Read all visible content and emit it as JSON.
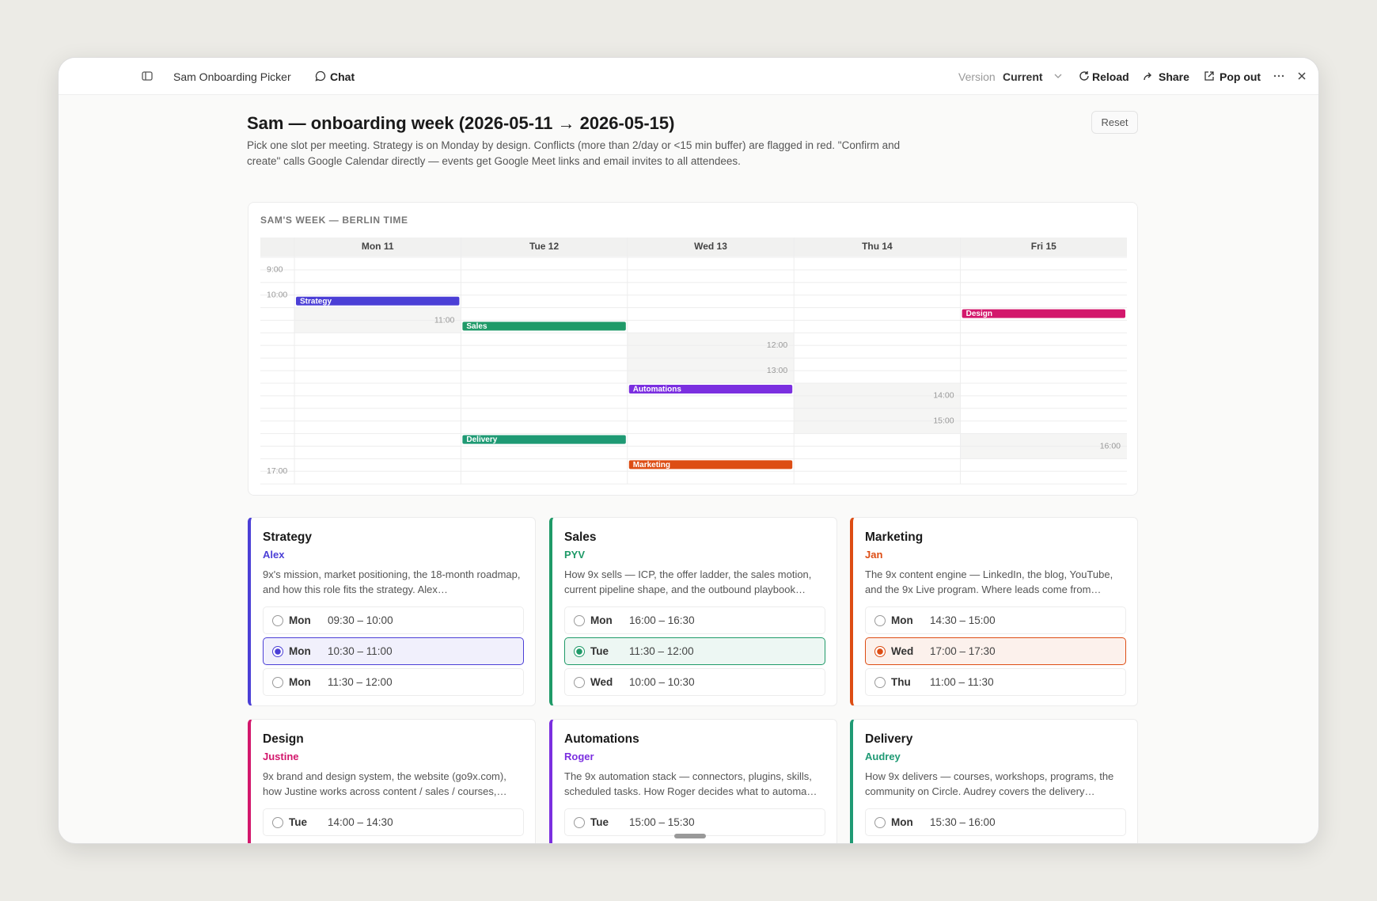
{
  "toolbar": {
    "app_name": "Sam Onboarding Picker",
    "chat": "Chat",
    "version_label": "Version",
    "version_value": "Current",
    "reload": "Reload",
    "share": "Share",
    "pop_out": "Pop out"
  },
  "header": {
    "title": "Sam — onboarding week (2026-05-11 → 2026-05-15)",
    "description": "Pick one slot per meeting. Strategy is on Monday by design. Conflicts (more than 2/day or <15 min buffer) are flagged in red. \"Confirm and create\" calls Google Calendar directly — events get Google Meet links and email invites to all attendees.",
    "reset": "Reset"
  },
  "calendar": {
    "heading": "SAM'S WEEK — BERLIN TIME",
    "days": [
      "Mon 11",
      "Tue 12",
      "Wed 13",
      "Thu 14",
      "Fri 15"
    ],
    "time_labels": [
      "9:00",
      "10:00",
      "11:00",
      "12:00",
      "13:00",
      "14:00",
      "15:00",
      "16:00",
      "17:00"
    ],
    "events": [
      {
        "label": "Strategy",
        "color": "#4b3fd6"
      },
      {
        "label": "Sales",
        "color": "#1f9a68"
      },
      {
        "label": "Design",
        "color": "#d3176c"
      },
      {
        "label": "Automations",
        "color": "#7b2fe0"
      },
      {
        "label": "Delivery",
        "color": "#1f9a74"
      },
      {
        "label": "Marketing",
        "color": "#dd4d14"
      }
    ]
  },
  "meetings": [
    {
      "title": "Strategy",
      "person": "Alex",
      "color": "#4b3fd6",
      "description": "9x's mission, market positioning, the 18-month roadmap, and how this role fits the strategy. Alex…",
      "slots": [
        {
          "day": "Mon",
          "time": "09:30 – 10:00",
          "selected": false
        },
        {
          "day": "Mon",
          "time": "10:30 – 11:00",
          "selected": true
        },
        {
          "day": "Mon",
          "time": "11:30 – 12:00",
          "selected": false
        }
      ]
    },
    {
      "title": "Sales",
      "person": "PYV",
      "color": "#1f9a68",
      "description": "How 9x sells — ICP, the offer ladder, the sales motion, current pipeline shape, and the outbound playbook…",
      "slots": [
        {
          "day": "Mon",
          "time": "16:00 – 16:30",
          "selected": false
        },
        {
          "day": "Tue",
          "time": "11:30 – 12:00",
          "selected": true
        },
        {
          "day": "Wed",
          "time": "10:00 – 10:30",
          "selected": false
        }
      ]
    },
    {
      "title": "Marketing",
      "person": "Jan",
      "color": "#dd4d14",
      "description": "The 9x content engine — LinkedIn, the blog, YouTube, and the 9x Live program. Where leads come from…",
      "slots": [
        {
          "day": "Mon",
          "time": "14:30 – 15:00",
          "selected": false
        },
        {
          "day": "Wed",
          "time": "17:00 – 17:30",
          "selected": true
        },
        {
          "day": "Thu",
          "time": "11:00 – 11:30",
          "selected": false
        }
      ]
    },
    {
      "title": "Design",
      "person": "Justine",
      "color": "#d3176c",
      "description": "9x brand and design system, the website (go9x.com), how Justine works across content / sales / courses,…",
      "slots": [
        {
          "day": "Tue",
          "time": "14:00 – 14:30",
          "selected": false
        }
      ]
    },
    {
      "title": "Automations",
      "person": "Roger",
      "color": "#7b2fe0",
      "description": "The 9x automation stack — connectors, plugins, skills, scheduled tasks. How Roger decides what to automa…",
      "slots": [
        {
          "day": "Tue",
          "time": "15:00 – 15:30",
          "selected": false
        }
      ]
    },
    {
      "title": "Delivery",
      "person": "Audrey",
      "color": "#1f9a74",
      "description": "How 9x delivers — courses, workshops, programs, the community on Circle. Audrey covers the delivery…",
      "slots": [
        {
          "day": "Mon",
          "time": "15:30 – 16:00",
          "selected": false
        }
      ]
    }
  ]
}
